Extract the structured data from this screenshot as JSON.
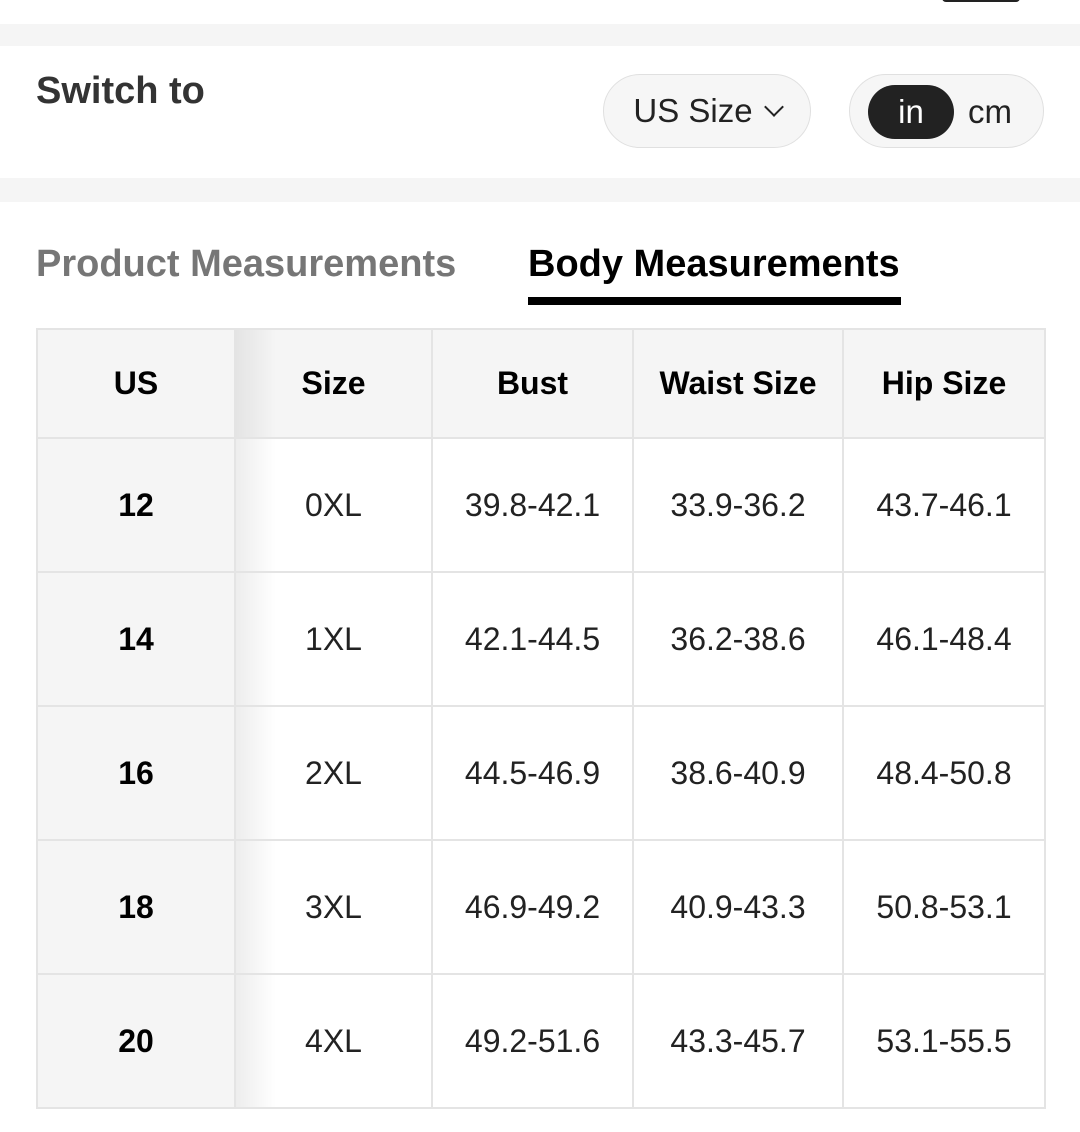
{
  "switch": {
    "label": "Switch to",
    "size_system": "US Size",
    "units": [
      "in",
      "cm"
    ],
    "selected_unit": "in"
  },
  "tabs": [
    {
      "label": "Product Measurements",
      "active": false
    },
    {
      "label": "Body Measurements",
      "active": true
    }
  ],
  "table": {
    "headers": [
      "US",
      "Size",
      "Bust",
      "Waist Size",
      "Hip Size"
    ],
    "rows": [
      [
        "12",
        "0XL",
        "39.8-42.1",
        "33.9-36.2",
        "43.7-46.1"
      ],
      [
        "14",
        "1XL",
        "42.1-44.5",
        "36.2-38.6",
        "46.1-48.4"
      ],
      [
        "16",
        "2XL",
        "44.5-46.9",
        "38.6-40.9",
        "48.4-50.8"
      ],
      [
        "18",
        "3XL",
        "46.9-49.2",
        "40.9-43.3",
        "50.8-53.1"
      ],
      [
        "20",
        "4XL",
        "49.2-51.6",
        "43.3-45.7",
        "53.1-55.5"
      ]
    ]
  }
}
